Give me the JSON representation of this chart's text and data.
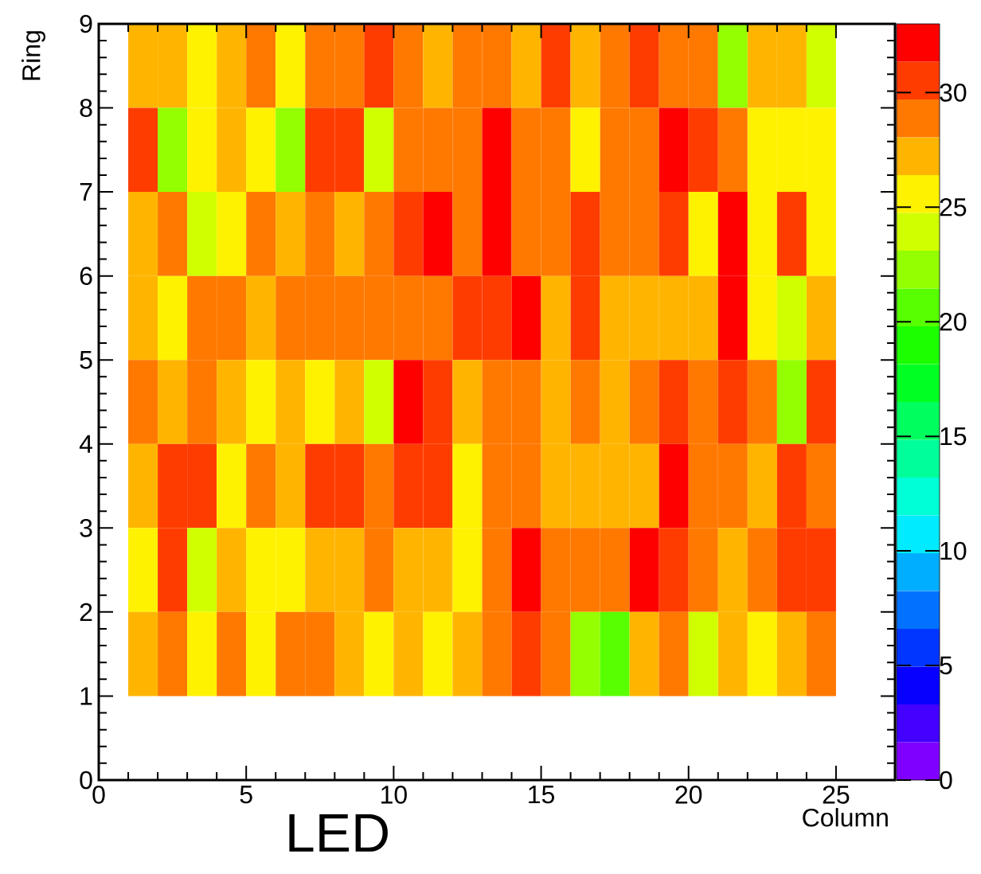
{
  "chart_data": {
    "type": "heatmap",
    "xlabel": "Column",
    "ylabel": "Ring",
    "annotations": [
      "LED"
    ],
    "x": [
      1.5,
      2.5,
      3.5,
      4.5,
      5.5,
      6.5,
      7.5,
      8.5,
      9.5,
      10.5,
      11.5,
      12.5,
      13.5,
      14.5,
      15.5,
      16.5,
      17.5,
      18.5,
      19.5,
      20.5,
      21.5,
      22.5,
      23.5,
      24.5
    ],
    "y": [
      8.5,
      7.5,
      6.5,
      5.5,
      4.5,
      3.5,
      2.5,
      1.5
    ],
    "cells": [
      [
        27,
        27,
        25.5,
        27,
        29,
        25.5,
        29,
        29,
        30.5,
        29,
        27,
        29,
        29,
        27,
        30.5,
        27,
        29,
        30.5,
        29,
        29,
        22,
        27,
        27,
        24
      ],
      [
        30.5,
        22,
        25.5,
        27,
        25.5,
        22,
        30.5,
        30.5,
        24,
        29,
        29,
        29,
        32,
        29,
        29,
        25.5,
        29,
        29,
        32,
        30.5,
        29,
        25.5,
        25.5,
        25.5
      ],
      [
        27,
        29,
        24,
        25.5,
        29,
        27,
        29,
        27,
        29,
        30.5,
        32,
        29,
        32,
        29,
        29,
        30.5,
        29,
        29,
        30.5,
        25.5,
        32,
        25.5,
        30.5,
        25.5
      ],
      [
        27,
        25.5,
        29,
        29,
        27,
        29,
        29,
        29,
        29,
        29,
        29,
        30.5,
        30.5,
        32,
        27,
        30.5,
        27,
        27,
        27,
        27,
        32,
        25.5,
        24,
        27
      ],
      [
        29,
        27,
        29,
        27,
        25.5,
        27,
        25.5,
        27,
        24,
        32,
        30.5,
        27,
        29,
        29,
        27,
        29,
        27,
        29,
        30.5,
        29,
        30.5,
        29,
        22,
        30.5
      ],
      [
        27,
        30.5,
        30.5,
        25.5,
        29,
        27,
        30.5,
        30.5,
        29,
        30.5,
        30.5,
        25.5,
        29,
        29,
        27,
        27,
        27,
        27,
        32,
        29,
        29,
        27,
        30.5,
        29
      ],
      [
        25.5,
        30.5,
        24,
        27,
        25.5,
        25.5,
        27,
        27,
        29,
        27,
        27,
        25.5,
        29,
        32,
        29,
        29,
        29,
        32,
        30.5,
        29,
        27,
        29,
        30.5,
        30.5
      ],
      [
        27,
        29,
        25.5,
        29,
        25.5,
        29,
        29,
        27,
        25.5,
        27,
        25.5,
        27,
        29,
        30.5,
        29,
        22,
        20.5,
        27,
        29,
        24,
        27,
        25.5,
        27,
        29
      ]
    ],
    "xlim": [
      0,
      27
    ],
    "ylim": [
      0,
      9
    ],
    "xticks": [
      0,
      5,
      10,
      15,
      20,
      25
    ],
    "yticks": [
      0,
      1,
      2,
      3,
      4,
      5,
      6,
      7,
      8,
      9
    ],
    "clim": [
      0,
      33
    ],
    "cticks": [
      0,
      5,
      10,
      15,
      20,
      25,
      30
    ]
  }
}
